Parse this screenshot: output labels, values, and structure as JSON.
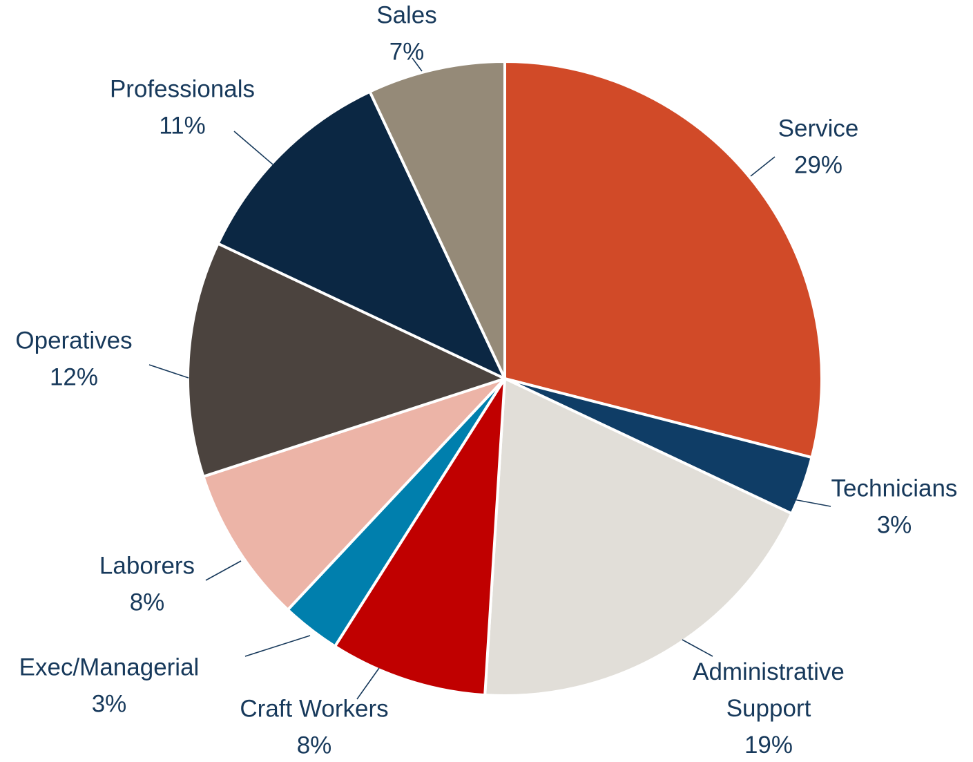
{
  "chart_data": {
    "type": "pie",
    "slices": [
      {
        "category_lines": [
          "Service"
        ],
        "value": 29,
        "label": "29%",
        "color": "#d14a28"
      },
      {
        "category_lines": [
          "Technicians"
        ],
        "value": 3,
        "label": "3%",
        "color": "#0f3d66"
      },
      {
        "category_lines": [
          "Administrative",
          "Support"
        ],
        "value": 19,
        "label": "19%",
        "color": "#e1ded8"
      },
      {
        "category_lines": [
          "Craft Workers"
        ],
        "value": 8,
        "label": "8%",
        "color": "#c00000"
      },
      {
        "category_lines": [
          "Exec/Managerial"
        ],
        "value": 3,
        "label": "3%",
        "color": "#007fad"
      },
      {
        "category_lines": [
          "Laborers"
        ],
        "value": 8,
        "label": "8%",
        "color": "#ecb4a7"
      },
      {
        "category_lines": [
          "Operatives"
        ],
        "value": 12,
        "label": "12%",
        "color": "#4b433e"
      },
      {
        "category_lines": [
          "Professionals"
        ],
        "value": 11,
        "label": "11%",
        "color": "#0b2743"
      },
      {
        "category_lines": [
          "Sales"
        ],
        "value": 7,
        "label": "7%",
        "color": "#958a78"
      }
    ]
  }
}
